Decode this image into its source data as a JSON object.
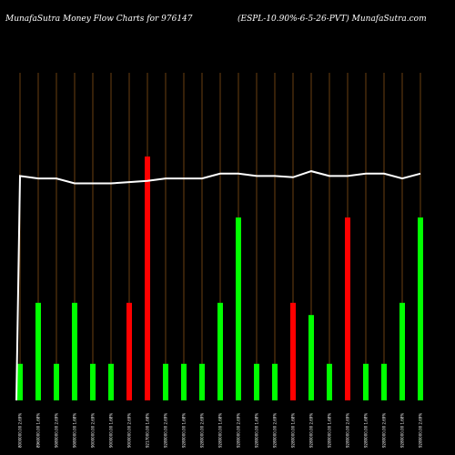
{
  "header": {
    "left": "MunafaSutra  Money Flow  Charts for 976147",
    "right": "(ESPL-10.90%-6-5-26-PVT) MunafaSutra.com"
  },
  "chart_data": {
    "type": "bar",
    "ylim": [
      0,
      100
    ],
    "categories": [
      "8000000.00 2.69%",
      "8960000.00 1.68%",
      "9080000.00 2.69%",
      "9080000.00 1.68%",
      "9000000.00 2.69%",
      "9000000.00 1.68%",
      "9000000.00 2.69%",
      "9217000.00 1.68%",
      "9280000.00 2.69%",
      "9280000.00 1.68%",
      "9280000.00 2.69%",
      "9280000.00 1.68%",
      "9280000.00 2.69%",
      "9280000.00 1.68%",
      "9280000.00 2.69%",
      "9280000.00 1.68%",
      "9280000.00 2.69%",
      "9280000.00 1.68%",
      "9280000.00 2.69%",
      "9280000.00 1.68%",
      "9280000.00 2.69%",
      "9280000.00 1.68%",
      "9280000.00 2.69%"
    ],
    "series": [
      {
        "values": [
          15,
          40,
          15,
          40,
          15,
          15,
          40,
          100,
          15,
          15,
          15,
          40,
          75,
          15,
          15,
          40,
          35,
          15,
          75,
          15,
          15,
          40,
          75
        ],
        "colors": [
          "green",
          "green",
          "green",
          "green",
          "green",
          "green",
          "red",
          "red",
          "green",
          "green",
          "green",
          "green",
          "green",
          "green",
          "green",
          "red",
          "green",
          "green",
          "red",
          "green",
          "green",
          "green",
          "green"
        ]
      },
      {
        "type": "line",
        "values": [
          92,
          91,
          91,
          89,
          89,
          89,
          89.5,
          90,
          91,
          91,
          91,
          93,
          93,
          92,
          92,
          91.5,
          94,
          92,
          92,
          93,
          93,
          91,
          93
        ]
      }
    ],
    "line_start": 0,
    "colors": {
      "green": "#00ff00",
      "red": "#ff0000",
      "line": "#ffffff",
      "grid": "#b36b1e"
    }
  }
}
